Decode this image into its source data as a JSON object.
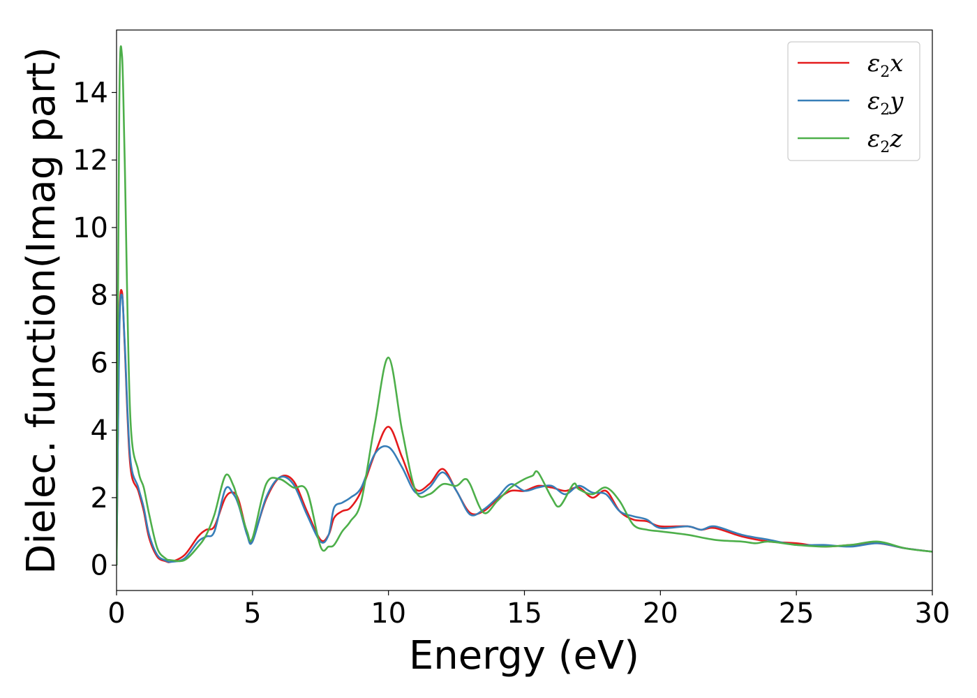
{
  "chart_data": {
    "type": "line",
    "xlabel": "Energy (eV)",
    "ylabel": "Dielec. function(Imag part)",
    "xlim": [
      0,
      30
    ],
    "ylim": [
      -0.75,
      15.85
    ],
    "xticks": [
      0,
      5,
      10,
      15,
      20,
      25,
      30
    ],
    "yticks": [
      0,
      2,
      4,
      6,
      8,
      10,
      12,
      14
    ],
    "grid": false,
    "legend_position": "top-right",
    "series": [
      {
        "name": "ε2x",
        "legend_symbol": "ε",
        "legend_sub": "2",
        "legend_suffix": "x",
        "color": "#e41a1c",
        "x": [
          0,
          0.1,
          0.2,
          0.3,
          0.5,
          0.8,
          1.0,
          1.2,
          1.5,
          1.8,
          2.0,
          2.5,
          3.0,
          3.3,
          3.6,
          4.0,
          4.3,
          4.5,
          4.8,
          5.0,
          5.5,
          6.0,
          6.5,
          7.0,
          7.5,
          7.8,
          8.0,
          8.3,
          8.6,
          9.0,
          9.5,
          10.0,
          10.5,
          11.0,
          11.5,
          12.0,
          12.5,
          13.0,
          13.5,
          14.0,
          14.5,
          15.0,
          15.5,
          16.0,
          16.5,
          17.0,
          17.5,
          18.0,
          18.5,
          19.0,
          19.5,
          20.0,
          21.0,
          21.5,
          22.0,
          23.0,
          24.0,
          25.0,
          26.0,
          27.0,
          28.0,
          29.0,
          30.0
        ],
        "y": [
          0,
          7.0,
          8.1,
          6.5,
          3.0,
          2.2,
          1.6,
          0.8,
          0.25,
          0.12,
          0.1,
          0.3,
          0.85,
          1.05,
          1.15,
          2.0,
          2.15,
          1.9,
          0.95,
          0.75,
          1.95,
          2.6,
          2.5,
          1.6,
          0.75,
          0.9,
          1.4,
          1.6,
          1.7,
          2.2,
          3.3,
          4.1,
          3.2,
          2.25,
          2.4,
          2.85,
          2.2,
          1.55,
          1.6,
          1.95,
          2.2,
          2.2,
          2.35,
          2.3,
          2.2,
          2.3,
          2.0,
          2.2,
          1.6,
          1.35,
          1.3,
          1.15,
          1.15,
          1.05,
          1.1,
          0.85,
          0.7,
          0.65,
          0.55,
          0.6,
          0.65,
          0.5,
          0.4
        ]
      },
      {
        "name": "ε2y",
        "legend_symbol": "ε",
        "legend_sub": "2",
        "legend_suffix": "y",
        "color": "#377eb8",
        "x": [
          0,
          0.1,
          0.2,
          0.3,
          0.5,
          0.8,
          1.0,
          1.2,
          1.5,
          1.8,
          2.0,
          2.5,
          3.0,
          3.3,
          3.6,
          4.0,
          4.3,
          4.5,
          4.8,
          5.0,
          5.5,
          6.0,
          6.5,
          7.0,
          7.5,
          7.8,
          8.0,
          8.3,
          8.6,
          9.0,
          9.5,
          10.0,
          10.5,
          11.0,
          11.5,
          12.0,
          12.5,
          13.0,
          13.5,
          14.0,
          14.5,
          15.0,
          15.5,
          16.0,
          16.5,
          17.0,
          17.5,
          18.0,
          18.5,
          19.0,
          19.5,
          20.0,
          21.0,
          21.5,
          22.0,
          23.0,
          24.0,
          25.0,
          26.0,
          27.0,
          28.0,
          29.0,
          30.0
        ],
        "y": [
          0,
          6.8,
          8.0,
          6.6,
          3.2,
          2.3,
          1.7,
          0.9,
          0.3,
          0.14,
          0.1,
          0.2,
          0.7,
          0.85,
          1.0,
          2.25,
          2.1,
          1.75,
          0.9,
          0.7,
          2.0,
          2.6,
          2.4,
          1.5,
          0.7,
          0.9,
          1.7,
          1.85,
          2.0,
          2.3,
          3.3,
          3.5,
          2.9,
          2.15,
          2.3,
          2.75,
          2.2,
          1.5,
          1.65,
          2.0,
          2.4,
          2.2,
          2.3,
          2.35,
          2.1,
          2.35,
          2.15,
          2.1,
          1.6,
          1.45,
          1.35,
          1.1,
          1.15,
          1.05,
          1.15,
          0.9,
          0.75,
          0.6,
          0.6,
          0.55,
          0.65,
          0.5,
          0.4
        ]
      },
      {
        "name": "ε2z",
        "legend_symbol": "ε",
        "legend_sub": "2",
        "legend_suffix": "z",
        "color": "#4daf4a",
        "x": [
          0,
          0.1,
          0.2,
          0.3,
          0.5,
          0.8,
          1.0,
          1.2,
          1.5,
          1.8,
          2.0,
          2.5,
          3.0,
          3.3,
          3.6,
          4.0,
          4.3,
          4.5,
          4.8,
          5.0,
          5.5,
          6.0,
          6.5,
          7.0,
          7.5,
          7.8,
          8.0,
          8.3,
          8.6,
          9.0,
          9.5,
          10.0,
          10.5,
          11.0,
          11.5,
          12.0,
          12.5,
          12.8,
          13.0,
          13.5,
          14.0,
          14.5,
          15.0,
          15.3,
          15.5,
          16.0,
          16.3,
          16.8,
          17.0,
          17.5,
          18.0,
          18.5,
          19.0,
          19.5,
          20.0,
          21.0,
          22.0,
          23.0,
          23.5,
          24.0,
          25.0,
          26.0,
          27.0,
          28.0,
          29.0,
          30.0
        ],
        "y": [
          0,
          13.5,
          15.1,
          12.0,
          4.5,
          2.8,
          2.3,
          1.5,
          0.5,
          0.2,
          0.15,
          0.15,
          0.55,
          0.9,
          1.5,
          2.65,
          2.35,
          1.8,
          1.0,
          0.8,
          2.4,
          2.55,
          2.3,
          2.2,
          0.55,
          0.55,
          0.6,
          1.0,
          1.3,
          1.9,
          4.2,
          6.15,
          4.0,
          2.2,
          2.1,
          2.4,
          2.35,
          2.55,
          2.4,
          1.55,
          1.9,
          2.3,
          2.55,
          2.65,
          2.75,
          2.0,
          1.75,
          2.4,
          2.25,
          2.1,
          2.3,
          1.9,
          1.2,
          1.05,
          1.0,
          0.9,
          0.75,
          0.7,
          0.65,
          0.7,
          0.6,
          0.55,
          0.6,
          0.7,
          0.5,
          0.4
        ]
      }
    ]
  }
}
